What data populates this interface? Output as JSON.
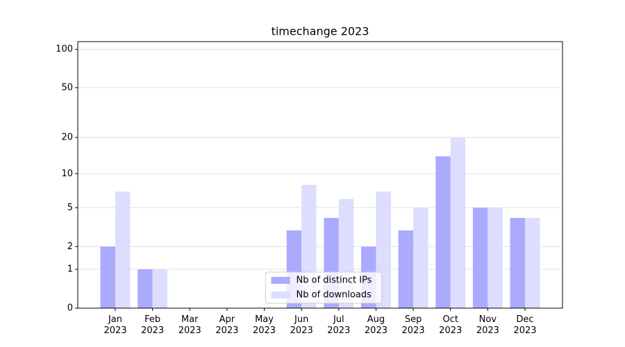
{
  "chart_data": {
    "type": "bar",
    "title": "timechange 2023",
    "categories": [
      "Jan\n2023",
      "Feb\n2023",
      "Mar\n2023",
      "Apr\n2023",
      "May\n2023",
      "Jun\n2023",
      "Jul\n2023",
      "Aug\n2023",
      "Sep\n2023",
      "Oct\n2023",
      "Nov\n2023",
      "Dec\n2023"
    ],
    "series": [
      {
        "name": "Nb of distinct IPs",
        "color": "#aaaaff",
        "values": [
          2,
          1,
          0,
          0,
          0,
          3,
          4,
          2,
          3,
          14,
          5,
          4
        ]
      },
      {
        "name": "Nb of downloads",
        "color": "#ddddff",
        "values": [
          7,
          1,
          0,
          0,
          0,
          8,
          6,
          7,
          5,
          20,
          5,
          4
        ]
      }
    ],
    "yscale": "log1p",
    "ylim": [
      0,
      115
    ],
    "yticks": [
      0,
      1,
      2,
      5,
      10,
      20,
      50,
      100
    ],
    "grid": true,
    "legend": "lower center"
  }
}
